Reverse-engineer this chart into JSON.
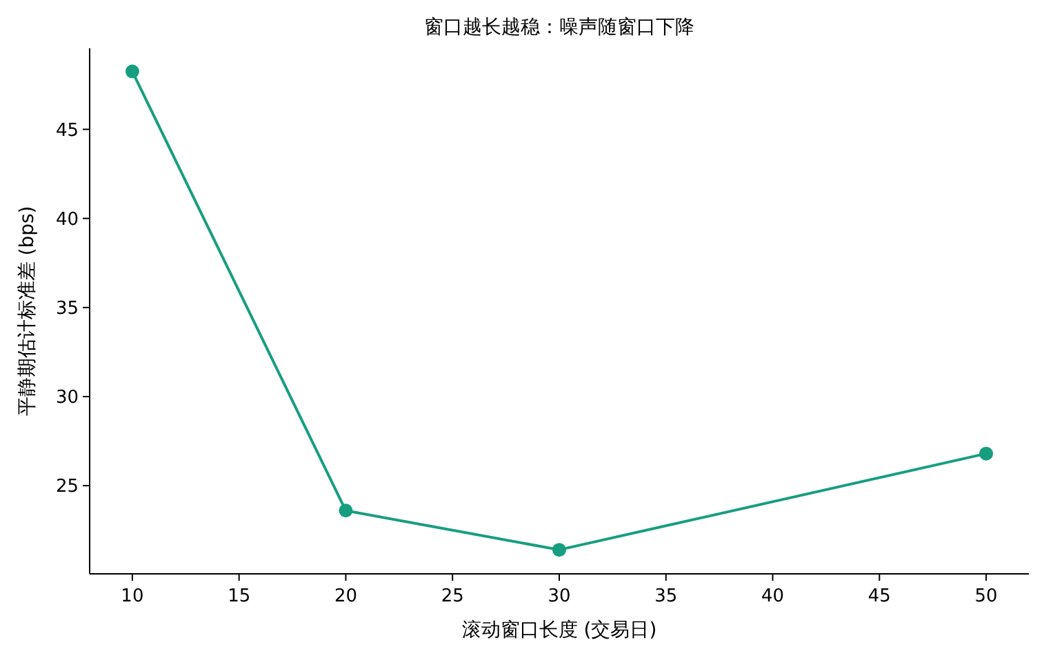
{
  "chart_data": {
    "type": "line",
    "title": "窗口越长越稳：噪声随窗口下降",
    "xlabel": "滚动窗口长度 (交易日)",
    "ylabel": "平静期估计标准差 (bps)",
    "x": [
      10,
      20,
      30,
      50
    ],
    "series": [
      {
        "color": "#179e80",
        "values": [
          48.25,
          23.6,
          21.4,
          26.8
        ]
      }
    ],
    "marker": "circle",
    "line_style": "solid",
    "grid": false,
    "xlim": [
      8,
      52
    ],
    "ylim": [
      20.05,
      49.55
    ],
    "xticks": [
      10,
      15,
      20,
      25,
      30,
      35,
      40,
      45,
      50
    ],
    "yticks": [
      25,
      30,
      35,
      40,
      45
    ]
  }
}
